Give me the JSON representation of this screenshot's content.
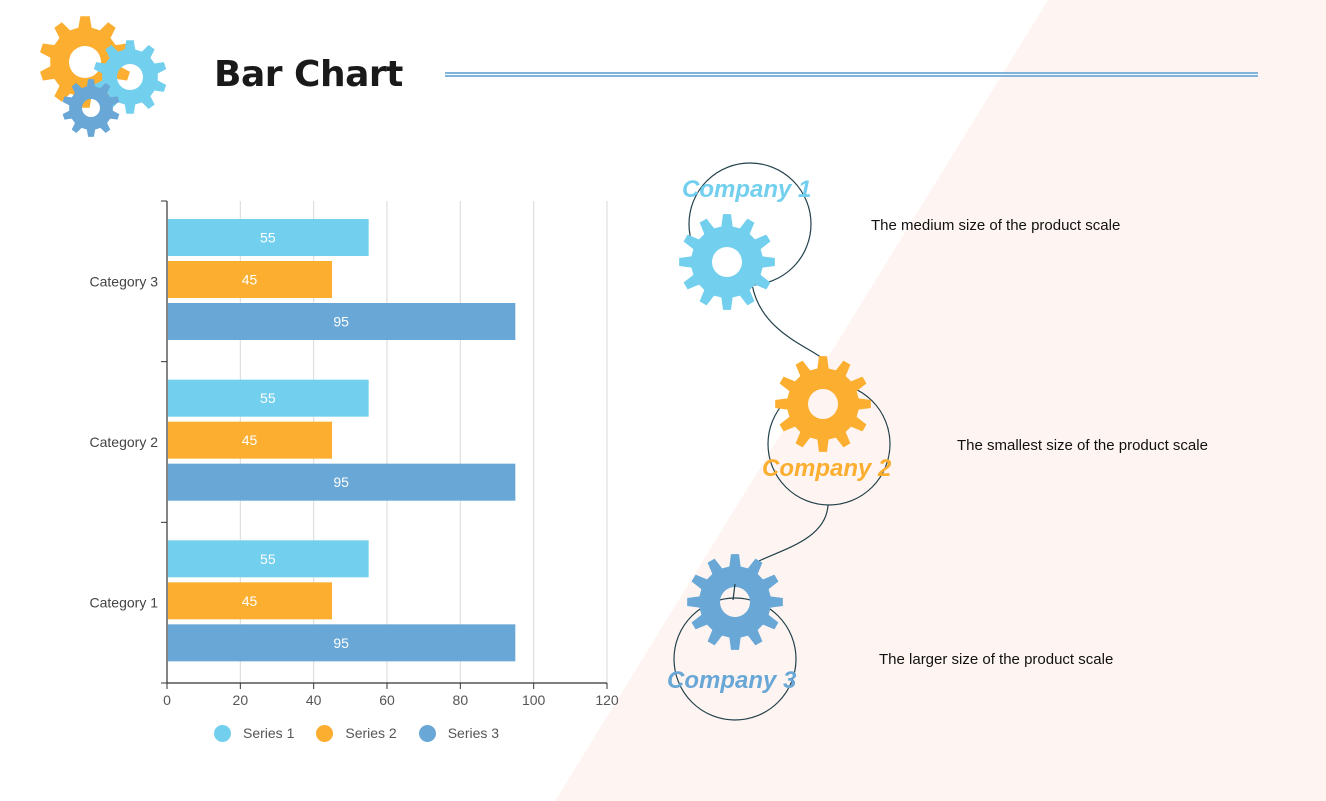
{
  "header": {
    "title": "Bar Chart"
  },
  "colors": {
    "series1": "#72CFEE",
    "series2": "#FBAE2F",
    "series3": "#68A7D6",
    "background_wedge": "#FEF5F2",
    "title_rule": "#7FB4DC"
  },
  "icons": {
    "logo": "gears-icon",
    "company": "gear-icon"
  },
  "chart_data": {
    "type": "bar",
    "orientation": "horizontal",
    "categories": [
      "Category 1",
      "Category 2",
      "Category 3"
    ],
    "series": [
      {
        "name": "Series 1",
        "values": [
          55,
          55,
          55
        ]
      },
      {
        "name": "Series 2",
        "values": [
          45,
          45,
          45
        ]
      },
      {
        "name": "Series 3",
        "values": [
          95,
          95,
          95
        ]
      }
    ],
    "x_ticks": [
      "0",
      "20",
      "40",
      "60",
      "80",
      "100",
      "120"
    ],
    "xlim": [
      0,
      120
    ],
    "grid": "vertical",
    "legend_position": "bottom",
    "data_labels": true,
    "title": "",
    "xlabel": "",
    "ylabel": ""
  },
  "companies": [
    {
      "name": "Company 1",
      "description": "The medium size of the product scale",
      "color": "#72CFEE"
    },
    {
      "name": "Company 2",
      "description": "The smallest size of the product scale",
      "color": "#FBAE2F"
    },
    {
      "name": "Company 3",
      "description": "The larger size of the product scale",
      "color": "#68A7D6"
    }
  ]
}
